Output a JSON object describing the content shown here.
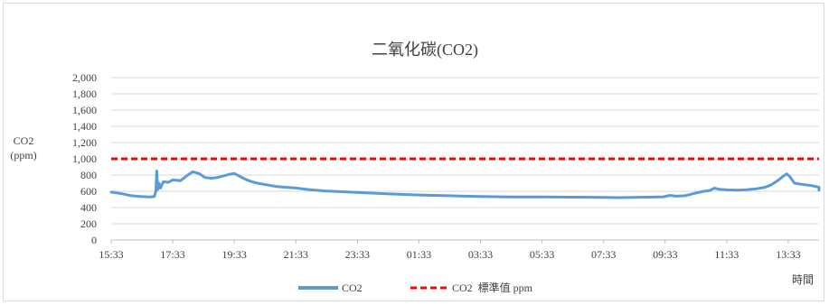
{
  "chart_data": {
    "type": "line",
    "title": "二氧化碳(CO2)",
    "ylabel_lines": [
      "CO2",
      "(ppm)"
    ],
    "xlabel": "時間",
    "ylim": [
      0,
      2000
    ],
    "yticks": [
      "0",
      "200",
      "400",
      "600",
      "800",
      "1,000",
      "1,200",
      "1,400",
      "1,600",
      "1,800",
      "2,000"
    ],
    "xlim_hours": [
      15.55,
      38.55
    ],
    "xticks": [
      {
        "label": "15:33",
        "h": 15.55
      },
      {
        "label": "17:33",
        "h": 17.55
      },
      {
        "label": "19:33",
        "h": 19.55
      },
      {
        "label": "21:33",
        "h": 21.55
      },
      {
        "label": "23:33",
        "h": 23.55
      },
      {
        "label": "01:33",
        "h": 25.55
      },
      {
        "label": "03:33",
        "h": 27.55
      },
      {
        "label": "05:33",
        "h": 29.55
      },
      {
        "label": "07:33",
        "h": 31.55
      },
      {
        "label": "09:33",
        "h": 33.55
      },
      {
        "label": "11:33",
        "h": 35.55
      },
      {
        "label": "13:33",
        "h": 37.55
      }
    ],
    "grid": true,
    "legend_position": "bottom",
    "series": [
      {
        "name": "CO2",
        "color": "#5b9bd5",
        "style": "solid",
        "points": [
          [
            15.55,
            590
          ],
          [
            15.9,
            570
          ],
          [
            16.2,
            545
          ],
          [
            16.5,
            535
          ],
          [
            16.8,
            530
          ],
          [
            16.95,
            535
          ],
          [
            17.0,
            600
          ],
          [
            17.03,
            850
          ],
          [
            17.06,
            620
          ],
          [
            17.1,
            700
          ],
          [
            17.15,
            640
          ],
          [
            17.25,
            720
          ],
          [
            17.4,
            710
          ],
          [
            17.55,
            740
          ],
          [
            17.8,
            730
          ],
          [
            18.0,
            790
          ],
          [
            18.2,
            840
          ],
          [
            18.4,
            820
          ],
          [
            18.6,
            770
          ],
          [
            18.8,
            760
          ],
          [
            19.0,
            770
          ],
          [
            19.2,
            790
          ],
          [
            19.4,
            810
          ],
          [
            19.55,
            820
          ],
          [
            19.7,
            790
          ],
          [
            19.9,
            750
          ],
          [
            20.1,
            720
          ],
          [
            20.3,
            700
          ],
          [
            20.6,
            680
          ],
          [
            20.9,
            660
          ],
          [
            21.2,
            650
          ],
          [
            21.55,
            640
          ],
          [
            22.0,
            620
          ],
          [
            22.5,
            605
          ],
          [
            23.0,
            595
          ],
          [
            23.55,
            585
          ],
          [
            24.5,
            570
          ],
          [
            25.55,
            555
          ],
          [
            26.5,
            545
          ],
          [
            27.55,
            535
          ],
          [
            28.5,
            530
          ],
          [
            29.55,
            530
          ],
          [
            30.5,
            528
          ],
          [
            31.55,
            525
          ],
          [
            32.0,
            522
          ],
          [
            32.5,
            525
          ],
          [
            33.0,
            528
          ],
          [
            33.5,
            532
          ],
          [
            33.7,
            550
          ],
          [
            33.9,
            540
          ],
          [
            34.2,
            545
          ],
          [
            34.5,
            575
          ],
          [
            34.8,
            600
          ],
          [
            35.0,
            610
          ],
          [
            35.15,
            640
          ],
          [
            35.3,
            625
          ],
          [
            35.55,
            618
          ],
          [
            35.9,
            615
          ],
          [
            36.2,
            620
          ],
          [
            36.5,
            630
          ],
          [
            36.8,
            650
          ],
          [
            37.0,
            680
          ],
          [
            37.2,
            730
          ],
          [
            37.4,
            790
          ],
          [
            37.5,
            815
          ],
          [
            37.6,
            780
          ],
          [
            37.75,
            700
          ],
          [
            38.0,
            685
          ],
          [
            38.3,
            670
          ],
          [
            38.6,
            650
          ],
          [
            38.9,
            630
          ],
          [
            39.2,
            615
          ],
          [
            39.5,
            620
          ],
          [
            39.8,
            625
          ],
          [
            40.1,
            618
          ],
          [
            40.3,
            625
          ]
        ]
      },
      {
        "name": "CO2  標準值 ppm",
        "color": "#ff0000",
        "style": "dashed",
        "value": 1000
      }
    ]
  }
}
